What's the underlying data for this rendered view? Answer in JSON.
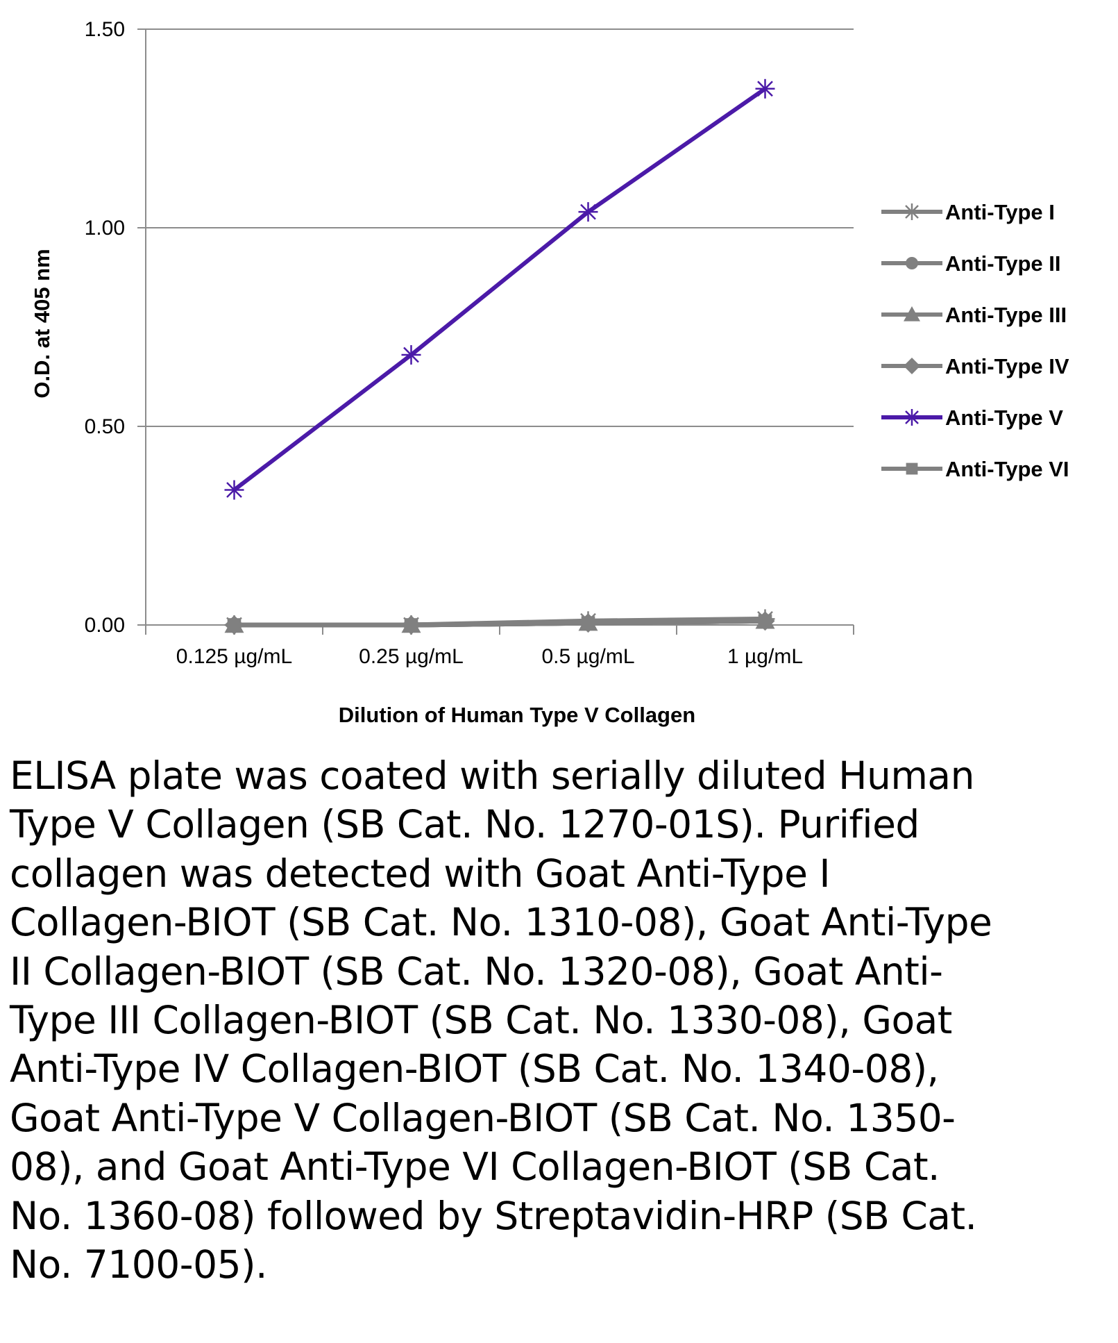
{
  "chart_data": {
    "type": "line",
    "title": "",
    "xlabel": "Dilution of Human Type V Collagen",
    "ylabel": "O.D. at 405 nm",
    "categories": [
      "0.125 µg/mL",
      "0.25 µg/mL",
      "0.5 µg/mL",
      "1 µg/mL"
    ],
    "ylim": [
      0,
      1.5
    ],
    "yticks": [
      "0.00",
      "0.50",
      "1.00",
      "1.50"
    ],
    "grid": true,
    "legend_position": "right",
    "series": [
      {
        "name": "Anti-Type I",
        "values": [
          0.0,
          0.0,
          0.01,
          0.015
        ],
        "color": "#808080",
        "marker": "star"
      },
      {
        "name": "Anti-Type II",
        "values": [
          0.0,
          0.0,
          0.005,
          0.01
        ],
        "color": "#808080",
        "marker": "circle"
      },
      {
        "name": "Anti-Type III",
        "values": [
          0.0,
          0.0,
          0.005,
          0.01
        ],
        "color": "#808080",
        "marker": "triangle"
      },
      {
        "name": "Anti-Type IV",
        "values": [
          0.0,
          0.0,
          0.005,
          0.01
        ],
        "color": "#808080",
        "marker": "diamond"
      },
      {
        "name": "Anti-Type V",
        "values": [
          0.34,
          0.68,
          1.04,
          1.35
        ],
        "color": "#4b1aa8",
        "marker": "star"
      },
      {
        "name": "Anti-Type VI",
        "values": [
          0.0,
          0.0,
          0.005,
          0.01
        ],
        "color": "#808080",
        "marker": "square"
      }
    ]
  },
  "caption": "ELISA plate was coated with serially diluted Human Type V Collagen (SB Cat. No. 1270-01S). Purified collagen was detected with Goat Anti-Type I Collagen-BIOT (SB Cat. No. 1310-08), Goat Anti-Type II Collagen-BIOT (SB Cat. No. 1320-08), Goat Anti-Type III Collagen-BIOT (SB Cat. No. 1330-08), Goat Anti-Type IV Collagen-BIOT (SB Cat. No. 1340-08), Goat Anti-Type V Collagen-BIOT (SB Cat. No. 1350-08), and Goat Anti-Type VI Collagen-BIOT (SB Cat. No. 1360-08) followed by Streptavidin-HRP (SB Cat. No. 7100-05)."
}
